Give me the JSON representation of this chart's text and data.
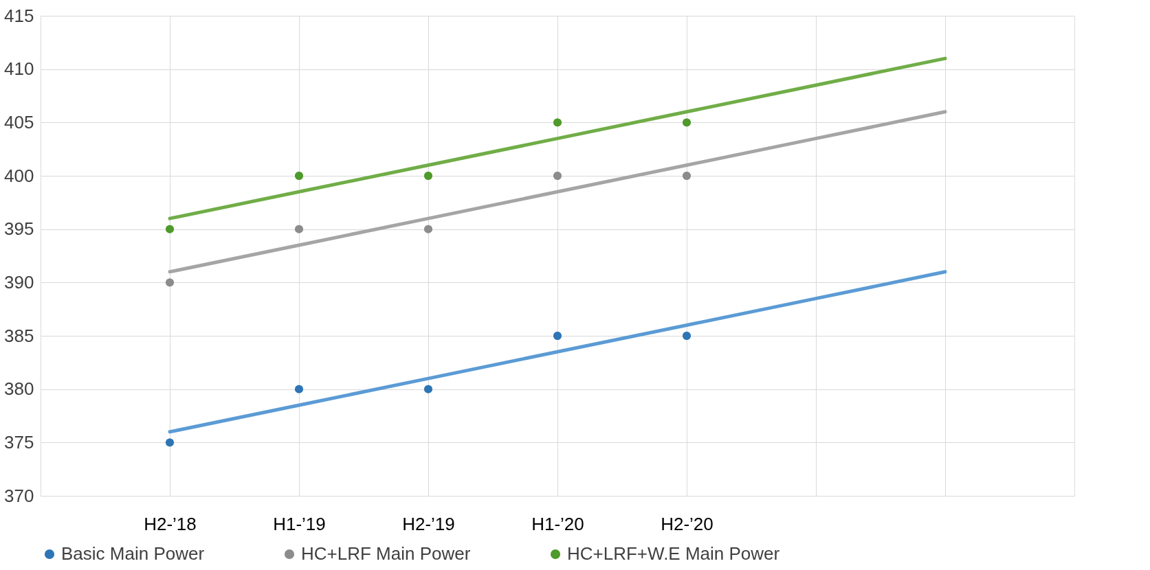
{
  "chart_data": {
    "type": "scatter",
    "categories": [
      "H2-’18",
      "H1-’19",
      "H2-’19",
      "H1-’20",
      "H2-’20",
      null,
      null
    ],
    "ylim": [
      370,
      415
    ],
    "yticks": [
      370,
      375,
      380,
      385,
      390,
      395,
      400,
      405,
      410,
      415
    ],
    "grid": true,
    "legend": "bottom",
    "marker": "circle",
    "series": [
      {
        "name": "Basic Main Power",
        "color": "#2e75b6",
        "values": [
          375,
          380,
          380,
          385,
          385,
          null,
          null
        ]
      },
      {
        "name": "HC+LRF Main Power",
        "color": "#8c8c8c",
        "values": [
          390,
          395,
          395,
          400,
          400,
          null,
          null
        ]
      },
      {
        "name": "HC+LRF+W.E Main Power",
        "color": "#4e9a2a",
        "values": [
          395,
          400,
          400,
          405,
          405,
          null,
          null
        ]
      },
      {
        "type": "line",
        "color": "#5b9bd5",
        "values": [
          376,
          378.5,
          381,
          383.5,
          386,
          388.5,
          391
        ],
        "line_style": "solid",
        "marker": "none"
      },
      {
        "type": "line",
        "color": "#a5a5a5",
        "values": [
          391,
          393.5,
          396,
          398.5,
          401,
          403.5,
          406
        ],
        "line_style": "solid",
        "marker": "none"
      },
      {
        "type": "line",
        "color": "#70ad47",
        "values": [
          396,
          398.5,
          401,
          403.5,
          406,
          408.5,
          411
        ],
        "line_style": "solid",
        "marker": "none"
      }
    ]
  }
}
